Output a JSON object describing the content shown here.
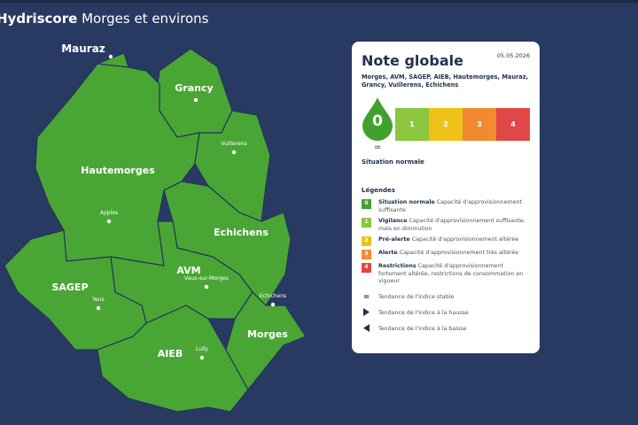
{
  "header": {
    "brand": "Hydriscore",
    "title": "Morges et environs"
  },
  "map": {
    "regions": [
      {
        "label": "Mauraz"
      },
      {
        "label": "Grancy"
      },
      {
        "label": "Hautemorges"
      },
      {
        "label": "Echichens"
      },
      {
        "label": "AVM"
      },
      {
        "label": "SAGEP"
      },
      {
        "label": "Morges"
      },
      {
        "label": "AIEB"
      }
    ],
    "localities": [
      {
        "label": "Vuillerens"
      },
      {
        "label": "Apples"
      },
      {
        "label": "Vaux-sur-Morges"
      },
      {
        "label": "Yens"
      },
      {
        "label": "Echichens"
      },
      {
        "label": "Lully"
      }
    ]
  },
  "card": {
    "title": "Note globale",
    "date": "05.05.2026",
    "communes": "Morges, AVM, SAGEP, AIEB, Hautemorges, Mauraz, Grancy, Vuillerens, Echichens",
    "score": "0",
    "scale": [
      "1",
      "2",
      "3",
      "4"
    ],
    "trend": "=",
    "status": "Situation normale",
    "legend_title": "Légendes",
    "levels": [
      {
        "code": "0",
        "color": "#43a02f",
        "name": "Situation normale",
        "desc": "Capacité d'approvisionnement suffisante"
      },
      {
        "code": "1",
        "color": "#8dc63f",
        "name": "Vigilance",
        "desc": "Capacité d'approvisionnement suffisante, mais en diminution"
      },
      {
        "code": "2",
        "color": "#efc21a",
        "name": "Pré-alerte",
        "desc": "Capacité d'approvisionnement altérée"
      },
      {
        "code": "3",
        "color": "#f28a30",
        "name": "Alerte",
        "desc": "Capacité d'approvisionnement très altérée"
      },
      {
        "code": "4",
        "color": "#e04848",
        "name": "Restrictions",
        "desc": "Capacité d'approvisionnement fortement altérée, restrictions de consommation en vigueur"
      }
    ],
    "trends": [
      {
        "symbol": "=",
        "text": "Tendance de l'indice stable"
      },
      {
        "text": "Tendance de l'indice à la hausse"
      },
      {
        "text": "Tendance de l'indice à la baisse"
      }
    ]
  }
}
